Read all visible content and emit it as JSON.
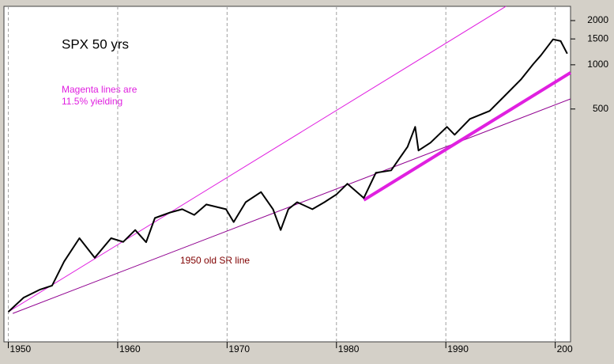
{
  "chart_data": {
    "type": "line",
    "title": "SPX 50 yrs",
    "annotations": [
      "Magenta lines are",
      "11.5% yielding",
      "1950 old SR line"
    ],
    "x": [
      1950.0,
      1951.4,
      1952.9,
      1954.0,
      1955.1,
      1956.5,
      1957.9,
      1959.4,
      1960.5,
      1961.6,
      1962.6,
      1963.4,
      1964.8,
      1965.9,
      1967.0,
      1968.1,
      1969.9,
      1970.6,
      1971.7,
      1973.1,
      1974.2,
      1974.9,
      1975.6,
      1976.4,
      1977.8,
      1978.9,
      1980.0,
      1981.0,
      1982.5,
      1983.6,
      1985.0,
      1986.5,
      1987.2,
      1987.5,
      1988.6,
      1990.1,
      1990.8,
      1992.2,
      1994.0,
      1995.1,
      1996.9,
      1998.0,
      1998.7,
      1999.8,
      2000.5,
      2001.1
    ],
    "values": [
      20.8,
      26,
      29.5,
      31.4,
      45.7,
      66,
      48.6,
      66,
      62.3,
      75,
      62,
      90.6,
      98.8,
      104,
      95,
      112,
      104,
      85,
      116,
      136,
      104,
      75,
      104,
      116,
      104,
      116,
      131,
      155,
      124,
      184,
      191,
      277,
      378,
      261,
      295,
      378,
      334,
      428,
      485,
      586,
      800,
      1012,
      1161,
      1490,
      1450,
      1190
    ],
    "color": "#000000",
    "trend_lines": [
      {
        "x": [
          1950.0,
          1995.5
        ],
        "values": [
          20.8,
          2500
        ],
        "color": "#e020e0",
        "line_width": 1
      },
      {
        "x": [
          1950.4,
          2001.4
        ],
        "values": [
          20.3,
          586
        ],
        "color": "#900090",
        "line_width": 1
      },
      {
        "x": [
          1982.5,
          2001.4
        ],
        "values": [
          120,
          884
        ],
        "color": "#e020e0",
        "line_width": 4
      }
    ],
    "xlim": [
      1949.6,
      2001.4
    ],
    "xticks": [
      1950,
      1960,
      1970,
      1980,
      1990,
      {
        "value": 2000,
        "label": "200"
      }
    ],
    "ylim": [
      13,
      2500
    ],
    "yticks": [
      500,
      1000,
      1500,
      2000
    ],
    "log_scale": true,
    "grid": true
  }
}
